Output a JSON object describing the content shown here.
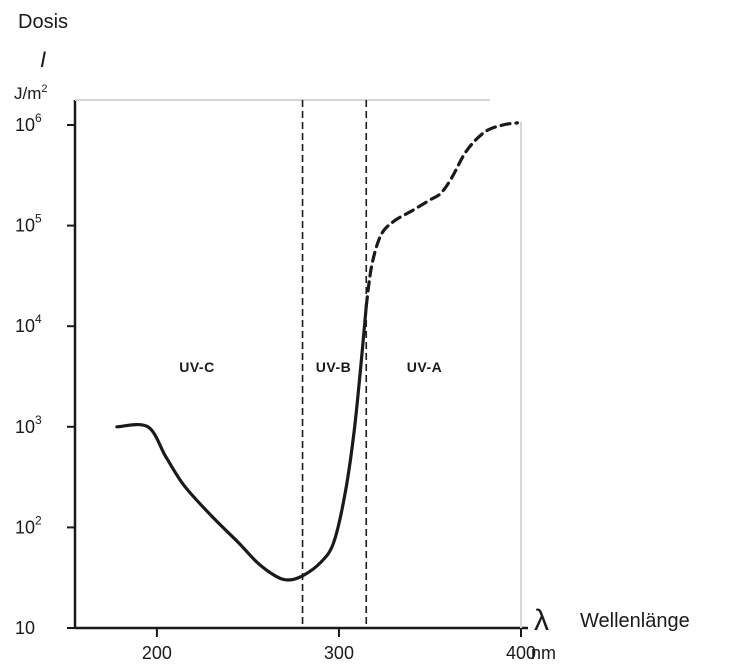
{
  "chart_data": {
    "type": "line",
    "title": "",
    "y_axis": {
      "label": "Dosis",
      "symbol": "I",
      "unit_base": "J/m",
      "unit_exp": "2",
      "scale": "log",
      "range": [
        10,
        1000000
      ],
      "ticks": [
        {
          "value": 10,
          "base": "10",
          "exp": ""
        },
        {
          "value": 100,
          "base": "10",
          "exp": "2"
        },
        {
          "value": 1000,
          "base": "10",
          "exp": "3"
        },
        {
          "value": 10000,
          "base": "10",
          "exp": "4"
        },
        {
          "value": 100000,
          "base": "10",
          "exp": "5"
        },
        {
          "value": 1000000,
          "base": "10",
          "exp": "6"
        }
      ]
    },
    "x_axis": {
      "symbol": "λ",
      "label": "Wellenlänge",
      "unit": "nm",
      "range": [
        155,
        400
      ],
      "ticks": [
        {
          "value": 200,
          "label": "200"
        },
        {
          "value": 300,
          "label": "300"
        },
        {
          "value": 400,
          "label": "400"
        }
      ]
    },
    "boundaries": [
      280,
      315
    ],
    "regions": [
      {
        "label": "UV-C",
        "x": 222,
        "y": 3500
      },
      {
        "label": "UV-B",
        "x": 297,
        "y": 3500
      },
      {
        "label": "UV-A",
        "x": 347,
        "y": 3500
      }
    ],
    "series": [
      {
        "style": "solid",
        "points": [
          [
            178,
            1000
          ],
          [
            195,
            1000
          ],
          [
            205,
            500
          ],
          [
            215,
            260
          ],
          [
            230,
            130
          ],
          [
            245,
            70
          ],
          [
            255,
            45
          ],
          [
            265,
            33
          ],
          [
            272,
            30
          ],
          [
            280,
            33
          ],
          [
            290,
            45
          ],
          [
            297,
            70
          ],
          [
            303,
            200
          ],
          [
            308,
            800
          ],
          [
            312,
            4000
          ],
          [
            315,
            16000
          ]
        ]
      },
      {
        "style": "dashed",
        "points": [
          [
            315,
            16000
          ],
          [
            318,
            40000
          ],
          [
            323,
            80000
          ],
          [
            330,
            110000
          ],
          [
            340,
            140000
          ],
          [
            350,
            180000
          ],
          [
            356,
            210000
          ],
          [
            362,
            300000
          ],
          [
            370,
            550000
          ],
          [
            380,
            850000
          ],
          [
            390,
            1000000
          ],
          [
            398,
            1050000
          ]
        ]
      }
    ],
    "grid": false,
    "legend": "none"
  }
}
